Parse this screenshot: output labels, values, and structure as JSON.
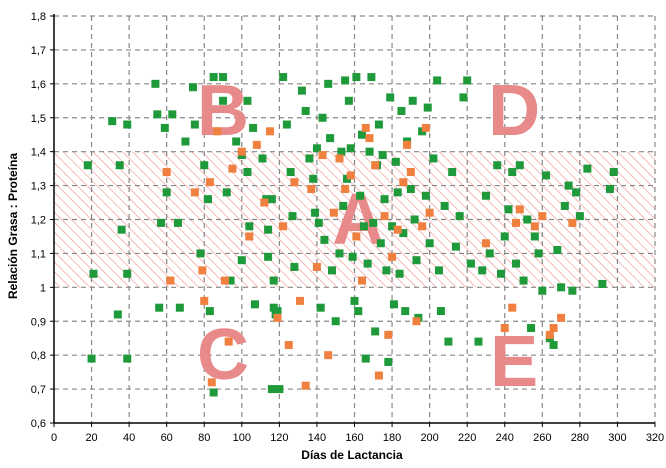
{
  "chart_data": {
    "type": "scatter",
    "title": "",
    "xlabel": "Días de Lactancia",
    "ylabel": "Relación Grasa : Proteína",
    "xlim": [
      0,
      320
    ],
    "ylim": [
      0.6,
      1.8
    ],
    "x_ticks": [
      0,
      20,
      40,
      60,
      80,
      100,
      120,
      140,
      160,
      180,
      200,
      220,
      240,
      260,
      280,
      300,
      320
    ],
    "y_ticks": [
      0.6,
      0.7,
      0.8,
      0.9,
      1.0,
      1.1,
      1.2,
      1.3,
      1.4,
      1.5,
      1.6,
      1.7,
      1.8
    ],
    "y_tick_labels": [
      "0,6",
      "0,7",
      "0,8",
      "0,9",
      "1",
      "1,1",
      "1,2",
      "1,3",
      "1,4",
      "1,5",
      "1,6",
      "1,7",
      "1,8"
    ],
    "grid": true,
    "reference_band": {
      "y_from": 1.0,
      "y_to": 1.4,
      "pattern": "diagonal-hatch",
      "color": "#f08c8c"
    },
    "region_labels": [
      {
        "text": "A",
        "x": 162,
        "y": 1.2
      },
      {
        "text": "B",
        "x": 90,
        "y": 1.52
      },
      {
        "text": "C",
        "x": 90,
        "y": 0.8
      },
      {
        "text": "D",
        "x": 245,
        "y": 1.52
      },
      {
        "text": "E",
        "x": 245,
        "y": 0.78
      }
    ],
    "region_label_color": "#e88a8a",
    "series": [
      {
        "color": "#1e9a3a",
        "marker": "square",
        "points": [
          [
            18,
            1.36
          ],
          [
            21,
            1.04
          ],
          [
            20,
            0.79
          ],
          [
            31,
            1.49
          ],
          [
            35,
            1.36
          ],
          [
            36,
            1.17
          ],
          [
            39,
            1.48
          ],
          [
            39,
            1.04
          ],
          [
            39,
            0.79
          ],
          [
            34,
            0.92
          ],
          [
            54,
            1.6
          ],
          [
            55,
            1.51
          ],
          [
            59,
            1.47
          ],
          [
            60,
            1.28
          ],
          [
            57,
            1.19
          ],
          [
            56,
            0.94
          ],
          [
            63,
            1.51
          ],
          [
            66,
            1.19
          ],
          [
            67,
            0.94
          ],
          [
            70,
            1.43
          ],
          [
            74,
            1.59
          ],
          [
            75,
            1.48
          ],
          [
            78,
            1.1
          ],
          [
            80,
            1.36
          ],
          [
            82,
            1.26
          ],
          [
            85,
            1.62
          ],
          [
            83,
            0.93
          ],
          [
            85,
            0.69
          ],
          [
            90,
            1.62
          ],
          [
            90,
            1.55
          ],
          [
            92,
            1.28
          ],
          [
            94,
            1.02
          ],
          [
            97,
            1.43
          ],
          [
            100,
            1.39
          ],
          [
            100,
            1.08
          ],
          [
            103,
            1.55
          ],
          [
            103,
            1.34
          ],
          [
            104,
            1.18
          ],
          [
            106,
            1.47
          ],
          [
            107,
            0.95
          ],
          [
            111,
            1.38
          ],
          [
            113,
            1.26
          ],
          [
            114,
            1.17
          ],
          [
            114,
            1.09
          ],
          [
            116,
            1.26
          ],
          [
            117,
            1.02
          ],
          [
            117,
            0.94
          ],
          [
            118,
            0.92
          ],
          [
            119,
            0.93
          ],
          [
            116,
            0.7
          ],
          [
            120,
            0.7
          ],
          [
            122,
            1.62
          ],
          [
            124,
            1.48
          ],
          [
            126,
            1.34
          ],
          [
            127,
            1.21
          ],
          [
            128,
            1.06
          ],
          [
            132,
            1.58
          ],
          [
            134,
            1.52
          ],
          [
            136,
            1.38
          ],
          [
            138,
            1.32
          ],
          [
            139,
            1.22
          ],
          [
            140,
            1.41
          ],
          [
            141,
            1.19
          ],
          [
            142,
            0.94
          ],
          [
            143,
            1.5
          ],
          [
            144,
            1.14
          ],
          [
            146,
            1.6
          ],
          [
            147,
            1.44
          ],
          [
            148,
            1.05
          ],
          [
            150,
            0.9
          ],
          [
            152,
            1.1
          ],
          [
            153,
            1.4
          ],
          [
            154,
            1.24
          ],
          [
            155,
            1.61
          ],
          [
            156,
            1.32
          ],
          [
            157,
            1.55
          ],
          [
            158,
            1.41
          ],
          [
            159,
            1.09
          ],
          [
            160,
            0.96
          ],
          [
            161,
            1.62
          ],
          [
            162,
            0.93
          ],
          [
            163,
            1.27
          ],
          [
            164,
            1.45
          ],
          [
            165,
            1.18
          ],
          [
            166,
            0.79
          ],
          [
            167,
            1.07
          ],
          [
            168,
            1.4
          ],
          [
            169,
            1.62
          ],
          [
            170,
            1.19
          ],
          [
            171,
            0.87
          ],
          [
            172,
            1.36
          ],
          [
            173,
            1.48
          ],
          [
            174,
            1.13
          ],
          [
            175,
            1.39
          ],
          [
            176,
            1.26
          ],
          [
            177,
            1.05
          ],
          [
            178,
            0.78
          ],
          [
            179,
            1.56
          ],
          [
            180,
            1.18
          ],
          [
            181,
            0.95
          ],
          [
            182,
            1.37
          ],
          [
            183,
            1.28
          ],
          [
            184,
            1.04
          ],
          [
            185,
            1.52
          ],
          [
            186,
            1.16
          ],
          [
            187,
            0.93
          ],
          [
            188,
            1.43
          ],
          [
            190,
            1.29
          ],
          [
            191,
            1.55
          ],
          [
            192,
            1.2
          ],
          [
            193,
            1.08
          ],
          [
            194,
            0.91
          ],
          [
            196,
            1.46
          ],
          [
            198,
            1.27
          ],
          [
            199,
            1.53
          ],
          [
            200,
            1.13
          ],
          [
            202,
            1.38
          ],
          [
            204,
            1.61
          ],
          [
            205,
            1.05
          ],
          [
            206,
            0.93
          ],
          [
            208,
            1.24
          ],
          [
            210,
            0.84
          ],
          [
            212,
            1.34
          ],
          [
            214,
            1.12
          ],
          [
            216,
            1.21
          ],
          [
            218,
            1.56
          ],
          [
            220,
            1.61
          ],
          [
            222,
            1.07
          ],
          [
            226,
            0.84
          ],
          [
            228,
            1.05
          ],
          [
            230,
            1.27
          ],
          [
            232,
            1.1
          ],
          [
            236,
            1.36
          ],
          [
            238,
            1.04
          ],
          [
            240,
            1.15
          ],
          [
            242,
            1.23
          ],
          [
            244,
            1.34
          ],
          [
            246,
            1.07
          ],
          [
            248,
            1.36
          ],
          [
            250,
            1.02
          ],
          [
            252,
            1.2
          ],
          [
            254,
            0.88
          ],
          [
            256,
            1.15
          ],
          [
            258,
            1.1
          ],
          [
            260,
            0.99
          ],
          [
            262,
            1.33
          ],
          [
            264,
            0.85
          ],
          [
            266,
            0.83
          ],
          [
            268,
            1.11
          ],
          [
            270,
            1.0
          ],
          [
            272,
            1.24
          ],
          [
            274,
            1.3
          ],
          [
            276,
            0.99
          ],
          [
            278,
            1.28
          ],
          [
            280,
            1.21
          ],
          [
            284,
            1.35
          ],
          [
            292,
            1.01
          ],
          [
            296,
            1.29
          ],
          [
            298,
            1.34
          ]
        ]
      },
      {
        "color": "#f08040",
        "marker": "square",
        "points": [
          [
            60,
            1.34
          ],
          [
            62,
            1.02
          ],
          [
            75,
            1.28
          ],
          [
            79,
            1.05
          ],
          [
            80,
            0.96
          ],
          [
            83,
            1.31
          ],
          [
            84,
            0.72
          ],
          [
            87,
            1.46
          ],
          [
            91,
            1.02
          ],
          [
            93,
            0.84
          ],
          [
            95,
            1.35
          ],
          [
            100,
            1.4
          ],
          [
            104,
            1.15
          ],
          [
            108,
            1.42
          ],
          [
            112,
            1.25
          ],
          [
            115,
            1.46
          ],
          [
            119,
            0.91
          ],
          [
            122,
            1.18
          ],
          [
            125,
            0.83
          ],
          [
            128,
            1.31
          ],
          [
            131,
            0.96
          ],
          [
            134,
            0.71
          ],
          [
            137,
            1.29
          ],
          [
            140,
            1.06
          ],
          [
            143,
            1.39
          ],
          [
            146,
            0.8
          ],
          [
            149,
            1.22
          ],
          [
            152,
            1.38
          ],
          [
            155,
            1.29
          ],
          [
            158,
            1.33
          ],
          [
            161,
            1.15
          ],
          [
            164,
            1.02
          ],
          [
            166,
            1.47
          ],
          [
            168,
            1.44
          ],
          [
            171,
            1.36
          ],
          [
            173,
            0.74
          ],
          [
            176,
            1.21
          ],
          [
            178,
            0.86
          ],
          [
            180,
            1.09
          ],
          [
            183,
            1.17
          ],
          [
            186,
            1.31
          ],
          [
            188,
            1.42
          ],
          [
            190,
            1.34
          ],
          [
            193,
            0.9
          ],
          [
            196,
            1.18
          ],
          [
            198,
            1.47
          ],
          [
            200,
            1.22
          ],
          [
            230,
            1.13
          ],
          [
            240,
            0.88
          ],
          [
            244,
            0.94
          ],
          [
            246,
            1.19
          ],
          [
            248,
            1.23
          ],
          [
            256,
            1.18
          ],
          [
            260,
            1.21
          ],
          [
            264,
            0.86
          ],
          [
            266,
            0.88
          ],
          [
            270,
            0.91
          ],
          [
            276,
            1.19
          ]
        ]
      }
    ]
  }
}
